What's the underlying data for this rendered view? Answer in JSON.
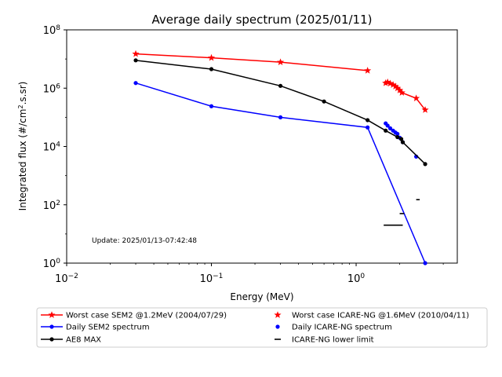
{
  "chart_data": {
    "type": "line",
    "title": "Average daily spectrum (2025/01/11)",
    "xlabel": "Energy (MeV)",
    "ylabel_prefix": "Integrated flux (#/cm",
    "ylabel_sup": "2",
    "ylabel_suffix": ".s.sr)",
    "x_scale": "log",
    "y_scale": "log",
    "xlim": [
      0.01,
      5
    ],
    "ylim": [
      1,
      100000000
    ],
    "x_ticks": [
      {
        "value": 0.01,
        "base": "10",
        "exp": "−2"
      },
      {
        "value": 0.1,
        "base": "10",
        "exp": "−1"
      },
      {
        "value": 1,
        "base": "10",
        "exp": "0"
      }
    ],
    "y_ticks": [
      {
        "value": 1,
        "base": "10",
        "exp": "0"
      },
      {
        "value": 100,
        "base": "10",
        "exp": "2"
      },
      {
        "value": 10000,
        "base": "10",
        "exp": "4"
      },
      {
        "value": 1000000,
        "base": "10",
        "exp": "6"
      },
      {
        "value": 100000000,
        "base": "10",
        "exp": "8"
      }
    ],
    "annotation": "Update: 2025/01/13-07:42:48",
    "legend_position": "below plot",
    "series": [
      {
        "name": "Worst case SEM2 @1.2MeV (2004/07/29)",
        "color": "#ff0000",
        "style": "line",
        "marker": "star",
        "x": [
          0.03,
          0.1,
          0.3,
          1.2
        ],
        "y": [
          15000000,
          11000000,
          7800000,
          4000000
        ]
      },
      {
        "name": "Worst case ICARE-NG @1.6MeV (2010/04/11)",
        "color": "#ff0000",
        "style": "line",
        "marker": "star",
        "x": [
          1.6,
          1.65,
          1.72,
          1.8,
          1.87,
          1.93,
          2.0,
          2.07,
          2.6,
          3.0
        ],
        "y": [
          1500000,
          1600000,
          1450000,
          1300000,
          1150000,
          1000000,
          850000,
          700000,
          450000,
          180000
        ]
      },
      {
        "name": "Daily SEM2 spectrum",
        "color": "#0000ff",
        "style": "line",
        "marker": "dot",
        "x": [
          0.03,
          0.1,
          0.3,
          1.2,
          3.0
        ],
        "y": [
          1500000,
          240000,
          100000,
          45000,
          1
        ]
      },
      {
        "name": "Daily ICARE-NG spectrum",
        "color": "#0000ff",
        "style": "points",
        "marker": "dot",
        "x": [
          1.6,
          1.65,
          1.72,
          1.8,
          1.87,
          1.93,
          2.0,
          2.1,
          2.6
        ],
        "y": [
          62000,
          52000,
          42000,
          35000,
          30000,
          27000,
          20000,
          14000,
          4500
        ]
      },
      {
        "name": "AE8 MAX",
        "color": "#000000",
        "style": "line",
        "marker": "dot",
        "x": [
          0.03,
          0.1,
          0.3,
          0.6,
          1.2,
          1.6,
          1.93,
          2.05,
          2.1,
          3.0
        ],
        "y": [
          9000000,
          4500000,
          1200000,
          350000,
          80000,
          35000,
          21000,
          18000,
          14000,
          2500
        ]
      },
      {
        "name": "ICARE-NG lower limit",
        "color": "#000000",
        "style": "hbars",
        "marker": "dash",
        "segments": [
          {
            "x": [
              1.55,
              2.1
            ],
            "y": 20
          },
          {
            "x": [
              2.0,
              2.15
            ],
            "y": 50
          },
          {
            "x": [
              2.6,
              2.75
            ],
            "y": 150
          }
        ]
      }
    ],
    "legend": [
      {
        "label": "Worst case SEM2 @1.2MeV (2004/07/29)",
        "color": "#ff0000",
        "marker": "star",
        "line": true
      },
      {
        "label": "Worst case ICARE-NG @1.6MeV (2010/04/11)",
        "color": "#ff0000",
        "marker": "star",
        "line": false
      },
      {
        "label": "Daily SEM2 spectrum",
        "color": "#0000ff",
        "marker": "dot",
        "line": true
      },
      {
        "label": "Daily ICARE-NG spectrum",
        "color": "#0000ff",
        "marker": "dot",
        "line": false
      },
      {
        "label": "AE8 MAX",
        "color": "#000000",
        "marker": "dot",
        "line": true
      },
      {
        "label": "ICARE-NG lower limit",
        "color": "#000000",
        "marker": "dash",
        "line": false
      }
    ]
  }
}
